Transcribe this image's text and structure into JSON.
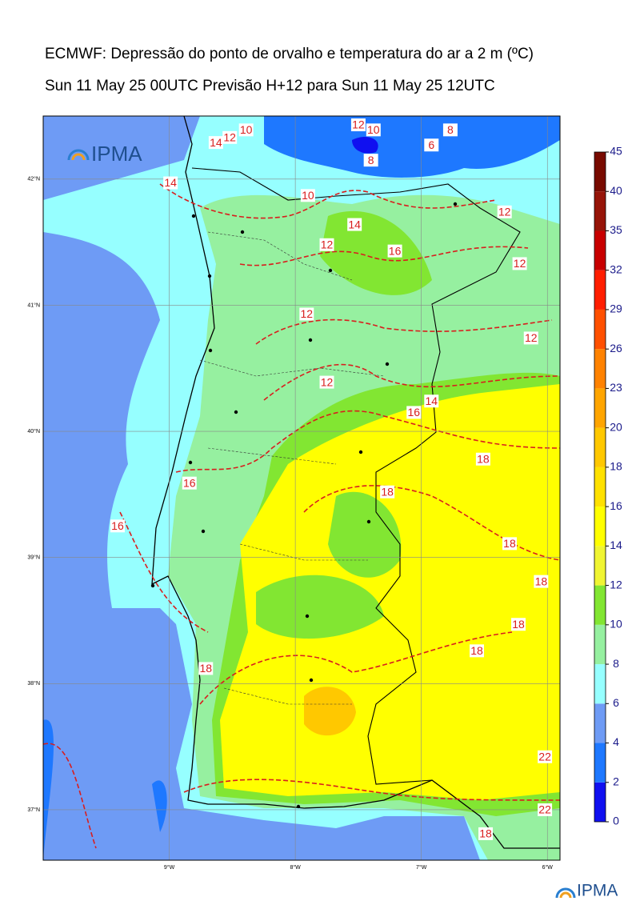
{
  "title": "ECMWF: Depressão do ponto de orvalho e temperatura do ar a 2 m (ºC)",
  "subtitle": "Sun 11 May 25 00UTC Previsão H+12 para Sun 11 May 25 12UTC",
  "logo_text": "IPMA",
  "map": {
    "lonlim": [
      -10.0,
      -5.9
    ],
    "latlim": [
      36.6,
      42.5
    ],
    "lonticks": [
      {
        "value": -9,
        "label": "9°W"
      },
      {
        "value": -8,
        "label": "8°W"
      },
      {
        "value": -7,
        "label": "7°W"
      },
      {
        "value": -6,
        "label": "6°W"
      }
    ],
    "latticks": [
      {
        "value": 42,
        "label": "42°N"
      },
      {
        "value": 41,
        "label": "41°N"
      },
      {
        "value": 40,
        "label": "40°N"
      },
      {
        "value": 39,
        "label": "39°N"
      },
      {
        "value": 38,
        "label": "38°N"
      },
      {
        "value": 37,
        "label": "37°N"
      }
    ],
    "grid": true,
    "contour_labels": [
      {
        "value": 14,
        "lon": -8.63,
        "lat": 42.29
      },
      {
        "value": 12,
        "lon": -8.52,
        "lat": 42.33
      },
      {
        "value": 10,
        "lon": -8.39,
        "lat": 42.39
      },
      {
        "value": 12,
        "lon": -7.5,
        "lat": 42.43
      },
      {
        "value": 10,
        "lon": -7.38,
        "lat": 42.39
      },
      {
        "value": 8,
        "lon": -7.4,
        "lat": 42.15
      },
      {
        "value": 8,
        "lon": -6.77,
        "lat": 42.39
      },
      {
        "value": 6,
        "lon": -6.92,
        "lat": 42.27
      },
      {
        "value": 14,
        "lon": -8.99,
        "lat": 41.97
      },
      {
        "value": 10,
        "lon": -7.9,
        "lat": 41.87
      },
      {
        "value": 14,
        "lon": -7.53,
        "lat": 41.64
      },
      {
        "value": 12,
        "lon": -7.75,
        "lat": 41.48
      },
      {
        "value": 16,
        "lon": -7.21,
        "lat": 41.43
      },
      {
        "value": 12,
        "lon": -6.34,
        "lat": 41.74
      },
      {
        "value": 12,
        "lon": -6.22,
        "lat": 41.33
      },
      {
        "value": 12,
        "lon": -7.91,
        "lat": 40.93
      },
      {
        "value": 12,
        "lon": -6.13,
        "lat": 40.74
      },
      {
        "value": 12,
        "lon": -7.75,
        "lat": 40.39
      },
      {
        "value": 14,
        "lon": -6.92,
        "lat": 40.24
      },
      {
        "value": 16,
        "lon": -7.06,
        "lat": 40.15
      },
      {
        "value": 18,
        "lon": -6.51,
        "lat": 39.78
      },
      {
        "value": 16,
        "lon": -8.84,
        "lat": 39.59
      },
      {
        "value": 16,
        "lon": -9.41,
        "lat": 39.25
      },
      {
        "value": 18,
        "lon": -7.27,
        "lat": 39.52
      },
      {
        "value": 18,
        "lon": -6.3,
        "lat": 39.11
      },
      {
        "value": 18,
        "lon": -6.05,
        "lat": 38.81
      },
      {
        "value": 18,
        "lon": -6.23,
        "lat": 38.47
      },
      {
        "value": 18,
        "lon": -6.56,
        "lat": 38.26
      },
      {
        "value": 18,
        "lon": -8.71,
        "lat": 38.12
      },
      {
        "value": 22,
        "lon": -6.02,
        "lat": 37.42
      },
      {
        "value": 22,
        "lon": -6.02,
        "lat": 37.0
      },
      {
        "value": 18,
        "lon": -6.49,
        "lat": 36.81
      }
    ]
  },
  "colorbar": {
    "ticks": [
      0,
      2,
      4,
      6,
      8,
      10,
      12,
      14,
      16,
      18,
      20,
      23,
      26,
      29,
      32,
      35,
      40,
      45
    ],
    "colors": [
      "#1010f0",
      "#1e78ff",
      "#6e9bf5",
      "#96ffff",
      "#96f0a0",
      "#82e632",
      "#f0f532",
      "#ffff00",
      "#ffe100",
      "#ffc800",
      "#ffa500",
      "#ff8200",
      "#ff5000",
      "#ff1e00",
      "#c80000",
      "#961408",
      "#780a00",
      "#460000"
    ]
  }
}
